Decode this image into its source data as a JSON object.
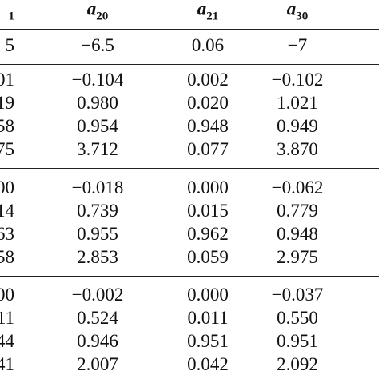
{
  "header": {
    "partial": "1",
    "columns": [
      {
        "symbol": "a",
        "index": "20"
      },
      {
        "symbol": "a",
        "index": "21"
      },
      {
        "symbol": "a",
        "index": "30"
      }
    ]
  },
  "true_row": [
    "5",
    "−6.5",
    "0.06",
    "−7"
  ],
  "groups": [
    [
      [
        "01",
        "−0.104",
        "0.002",
        "−0.102"
      ],
      [
        "19",
        "0.980",
        "0.020",
        "1.021"
      ],
      [
        "58",
        "0.954",
        "0.948",
        "0.949"
      ],
      [
        "75",
        "3.712",
        "0.077",
        "3.870"
      ]
    ],
    [
      [
        "00",
        "−0.018",
        "0.000",
        "−0.062"
      ],
      [
        "14",
        "0.739",
        "0.015",
        "0.779"
      ],
      [
        "63",
        "0.955",
        "0.962",
        "0.948"
      ],
      [
        "58",
        "2.853",
        "0.059",
        "2.975"
      ]
    ],
    [
      [
        "00",
        "−0.002",
        "0.000",
        "−0.037"
      ],
      [
        "11",
        "0.524",
        "0.011",
        "0.550"
      ],
      [
        "44",
        "0.946",
        "0.951",
        "0.951"
      ],
      [
        "41",
        "2.007",
        "0.042",
        "2.092"
      ]
    ]
  ]
}
